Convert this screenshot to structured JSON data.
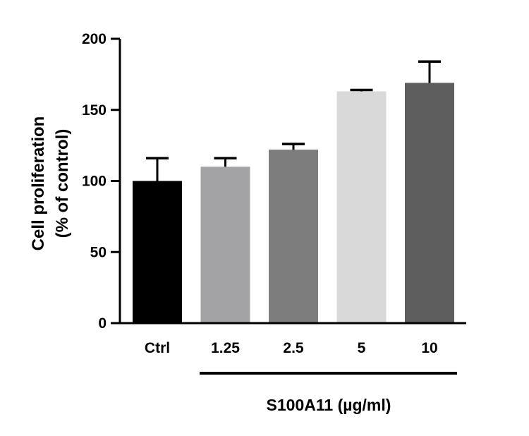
{
  "chart_data": {
    "type": "bar",
    "categories": [
      "Ctrl",
      "1.25",
      "2.5",
      "5",
      "10"
    ],
    "values": [
      100,
      110,
      122,
      163,
      169
    ],
    "errors": [
      16,
      6,
      4,
      1,
      15
    ],
    "colors": [
      "#000000",
      "#a3a3a6",
      "#7d7d7d",
      "#d9d9d9",
      "#5e5e5e"
    ],
    "ylabel_line1": "Cell proliferation",
    "ylabel_line2": "(% of control)",
    "ylim": [
      0,
      200
    ],
    "yticks": [
      0,
      50,
      100,
      150,
      200
    ],
    "group_label": "S100A11 (µg/ml)",
    "grid": false,
    "legend": "none"
  }
}
